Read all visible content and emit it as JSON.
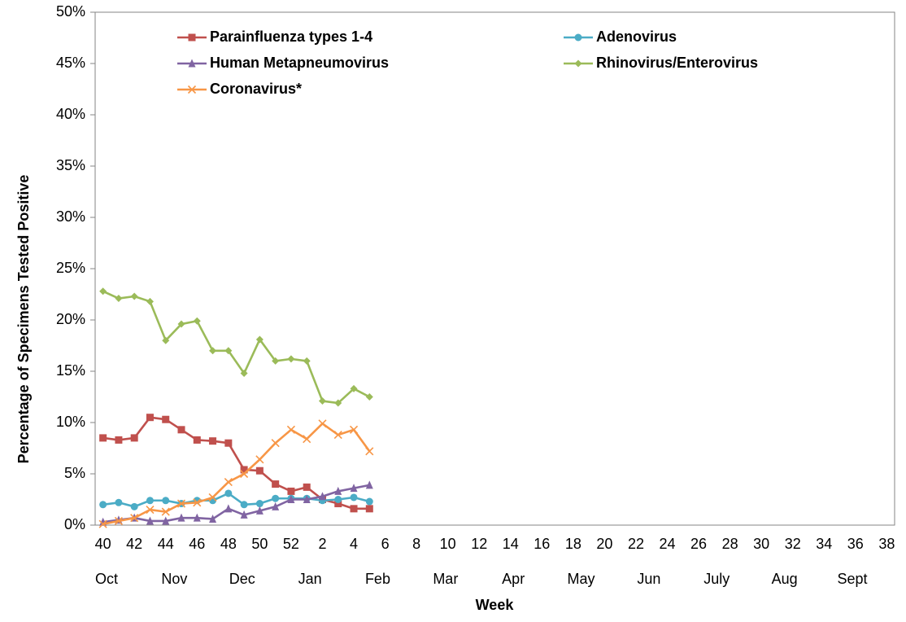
{
  "chart_data": {
    "type": "line",
    "y_axis_label": "Percentage of Specimens Tested Positive",
    "x_axis_label": "Week",
    "categories": [
      "40",
      null,
      "42",
      null,
      "44",
      null,
      "46",
      null,
      "48",
      null,
      "50",
      null,
      "52",
      null,
      "2",
      null,
      "4",
      null,
      "6",
      null,
      "8",
      null,
      "10",
      null,
      "12",
      null,
      "14",
      null,
      "16",
      null,
      "18",
      null,
      "20",
      null,
      "22",
      null,
      "24",
      null,
      "26",
      null,
      "28",
      null,
      "30",
      null,
      "32",
      null,
      "34",
      null,
      "36",
      null,
      "38"
    ],
    "x_group_labels": [
      "Oct",
      "Nov",
      "Dec",
      "Jan",
      "Feb",
      "Mar",
      "Apr",
      "May",
      "Jun",
      "July",
      "Aug",
      "Sept"
    ],
    "ylim": [
      0,
      50
    ],
    "yticks": [
      {
        "value": 0,
        "label": "0%"
      },
      {
        "value": 5,
        "label": "5%"
      },
      {
        "value": 10,
        "label": "10%"
      },
      {
        "value": 15,
        "label": "15%"
      },
      {
        "value": 20,
        "label": "20%"
      },
      {
        "value": 25,
        "label": "25%"
      },
      {
        "value": 30,
        "label": "30%"
      },
      {
        "value": 35,
        "label": "35%"
      },
      {
        "value": 40,
        "label": "40%"
      },
      {
        "value": 45,
        "label": "45%"
      },
      {
        "value": 50,
        "label": "50%"
      }
    ],
    "grid": false,
    "series": [
      {
        "name": "Parainfluenza types 1-4",
        "color": "#c0504d",
        "marker": "square",
        "values": [
          8.5,
          8.3,
          8.5,
          10.5,
          10.3,
          9.3,
          8.3,
          8.2,
          8.0,
          5.4,
          5.3,
          4.0,
          3.3,
          3.7,
          2.5,
          2.1,
          1.6,
          1.6,
          null,
          null,
          null,
          null,
          null,
          null,
          null,
          null,
          null,
          null,
          null,
          null,
          null,
          null,
          null,
          null,
          null,
          null,
          null,
          null,
          null,
          null,
          null,
          null,
          null,
          null,
          null,
          null,
          null,
          null,
          null,
          null,
          null
        ]
      },
      {
        "name": "Adenovirus",
        "color": "#4bacc6",
        "marker": "circle",
        "values": [
          2.0,
          2.2,
          1.8,
          2.4,
          2.4,
          2.1,
          2.4,
          2.4,
          3.1,
          2.0,
          2.1,
          2.6,
          2.6,
          2.6,
          2.4,
          2.5,
          2.7,
          2.3,
          null,
          null,
          null,
          null,
          null,
          null,
          null,
          null,
          null,
          null,
          null,
          null,
          null,
          null,
          null,
          null,
          null,
          null,
          null,
          null,
          null,
          null,
          null,
          null,
          null,
          null,
          null,
          null,
          null,
          null,
          null,
          null,
          null
        ]
      },
      {
        "name": "Human Metapneumovirus",
        "color": "#8064a2",
        "marker": "triangle",
        "values": [
          0.3,
          0.5,
          0.7,
          0.4,
          0.4,
          0.7,
          0.7,
          0.6,
          1.6,
          1.0,
          1.4,
          1.8,
          2.5,
          2.5,
          2.8,
          3.3,
          3.6,
          3.9,
          null,
          null,
          null,
          null,
          null,
          null,
          null,
          null,
          null,
          null,
          null,
          null,
          null,
          null,
          null,
          null,
          null,
          null,
          null,
          null,
          null,
          null,
          null,
          null,
          null,
          null,
          null,
          null,
          null,
          null,
          null,
          null,
          null
        ]
      },
      {
        "name": "Rhinovirus/Enterovirus",
        "color": "#9bbb59",
        "marker": "diamond",
        "values": [
          22.8,
          22.1,
          22.3,
          21.8,
          18.0,
          19.6,
          19.9,
          17.0,
          17.0,
          14.8,
          18.1,
          16.0,
          16.2,
          16.0,
          12.1,
          11.9,
          13.3,
          12.5,
          null,
          null,
          null,
          null,
          null,
          null,
          null,
          null,
          null,
          null,
          null,
          null,
          null,
          null,
          null,
          null,
          null,
          null,
          null,
          null,
          null,
          null,
          null,
          null,
          null,
          null,
          null,
          null,
          null,
          null,
          null,
          null,
          null
        ]
      },
      {
        "name": "Coronavirus*",
        "color": "#f79646",
        "marker": "x",
        "values": [
          0.1,
          0.4,
          0.7,
          1.5,
          1.3,
          2.1,
          2.2,
          2.7,
          4.2,
          5.0,
          6.4,
          8.0,
          9.3,
          8.4,
          9.9,
          8.8,
          9.3,
          7.2,
          null,
          null,
          null,
          null,
          null,
          null,
          null,
          null,
          null,
          null,
          null,
          null,
          null,
          null,
          null,
          null,
          null,
          null,
          null,
          null,
          null,
          null,
          null,
          null,
          null,
          null,
          null,
          null,
          null,
          null,
          null,
          null,
          null
        ]
      }
    ]
  }
}
